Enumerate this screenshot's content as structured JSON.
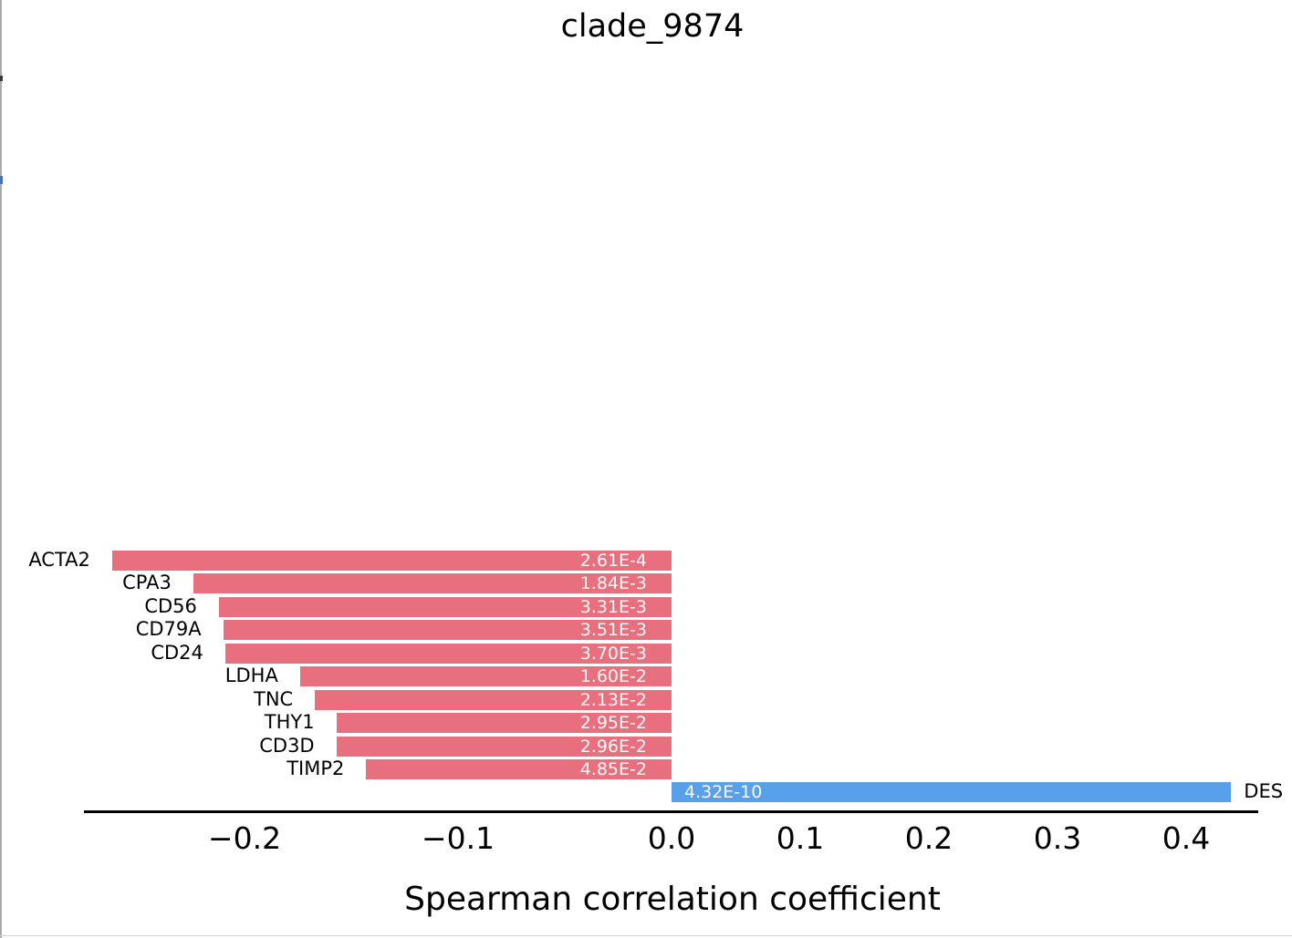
{
  "figure": {
    "background": "#ffffff"
  },
  "chart_data": {
    "type": "bar",
    "orientation": "horizontal",
    "title": "clade_9874",
    "xlabel": "Spearman correlation coefficient",
    "x_tick_labels": [
      "−0.2",
      "−0.1",
      "0.0",
      "0.1",
      "0.2",
      "0.3",
      "0.4"
    ],
    "x_tick_values": [
      -0.2,
      -0.1,
      0.0,
      0.1,
      0.2,
      0.3,
      0.4
    ],
    "xlim_note": "negative side of axis is stretched ~1.66x relative to positive side",
    "grid": false,
    "legend": null,
    "bars": [
      {
        "gene": "ACTA2",
        "correlation": -0.262,
        "p_value": "2.61E-4",
        "direction": "negative"
      },
      {
        "gene": "CPA3",
        "correlation": -0.224,
        "p_value": "1.84E-3",
        "direction": "negative"
      },
      {
        "gene": "CD56",
        "correlation": -0.212,
        "p_value": "3.31E-3",
        "direction": "negative"
      },
      {
        "gene": "CD79A",
        "correlation": -0.21,
        "p_value": "3.51E-3",
        "direction": "negative"
      },
      {
        "gene": "CD24",
        "correlation": -0.209,
        "p_value": "3.70E-3",
        "direction": "negative"
      },
      {
        "gene": "LDHA",
        "correlation": -0.174,
        "p_value": "1.60E-2",
        "direction": "negative"
      },
      {
        "gene": "TNC",
        "correlation": -0.167,
        "p_value": "2.13E-2",
        "direction": "negative"
      },
      {
        "gene": "THY1",
        "correlation": -0.157,
        "p_value": "2.95E-2",
        "direction": "negative"
      },
      {
        "gene": "CD3D",
        "correlation": -0.157,
        "p_value": "2.96E-2",
        "direction": "negative"
      },
      {
        "gene": "TIMP2",
        "correlation": -0.143,
        "p_value": "4.85E-2",
        "direction": "negative"
      },
      {
        "gene": "DES",
        "correlation": 0.435,
        "p_value": "4.32E-10",
        "direction": "positive"
      }
    ],
    "colors": {
      "negative_bar": "#e8707e",
      "positive_bar": "#58a0ea",
      "bar_label_text": "#ffffff",
      "axis_line": "#000000",
      "text": "#000000"
    }
  }
}
